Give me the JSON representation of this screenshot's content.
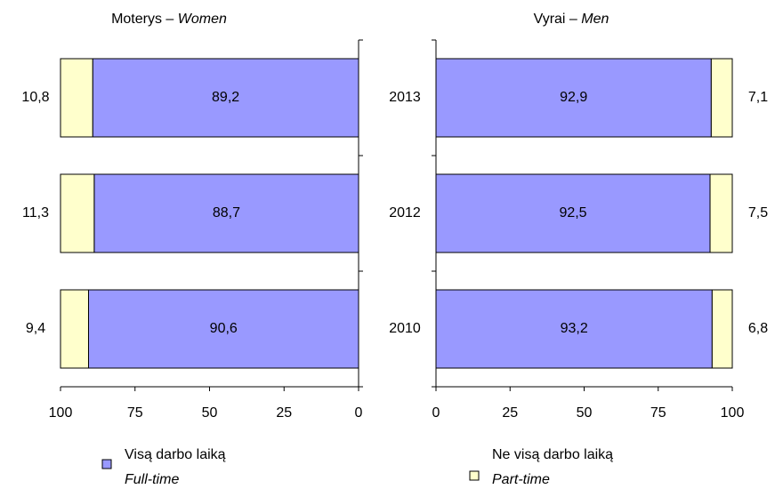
{
  "chart_data": [
    {
      "type": "bar",
      "orientation": "horizontal",
      "stacked": true,
      "title": "Moterys –",
      "title_en": "Women",
      "categories": [
        null,
        null,
        null
      ],
      "xlim": [
        100,
        0
      ],
      "xticks": [
        100,
        75,
        50,
        25,
        0
      ],
      "series": [
        {
          "name": "Visą darbo laiką",
          "name_en": "Full-time",
          "color": "#9999ff",
          "values": [
            89.2,
            88.7,
            90.6
          ],
          "value_labels": [
            "89,2",
            "88,7",
            "90,6"
          ]
        },
        {
          "color": "#ffffcc",
          "values": [
            10.8,
            11.3,
            9.4
          ],
          "value_labels": [
            "10,8",
            "11,3",
            "9,4"
          ]
        }
      ]
    },
    {
      "type": "bar",
      "orientation": "horizontal",
      "stacked": true,
      "title": "Vyrai –",
      "title_en": "Men",
      "categories": [
        "2013",
        "2012",
        "2010"
      ],
      "xlim": [
        0,
        100
      ],
      "xticks": [
        0,
        25,
        50,
        75,
        100
      ],
      "series": [
        {
          "color": "#9999ff",
          "values": [
            92.9,
            92.5,
            93.2
          ],
          "value_labels": [
            "92,9",
            "92,5",
            "93,2"
          ]
        },
        {
          "name": "Ne visą darbo laiką",
          "name_en": "Part-time",
          "color": "#ffffcc",
          "values": [
            7.1,
            7.5,
            6.8
          ],
          "value_labels": [
            "7,1",
            "7,5",
            "6,8"
          ]
        }
      ]
    }
  ]
}
